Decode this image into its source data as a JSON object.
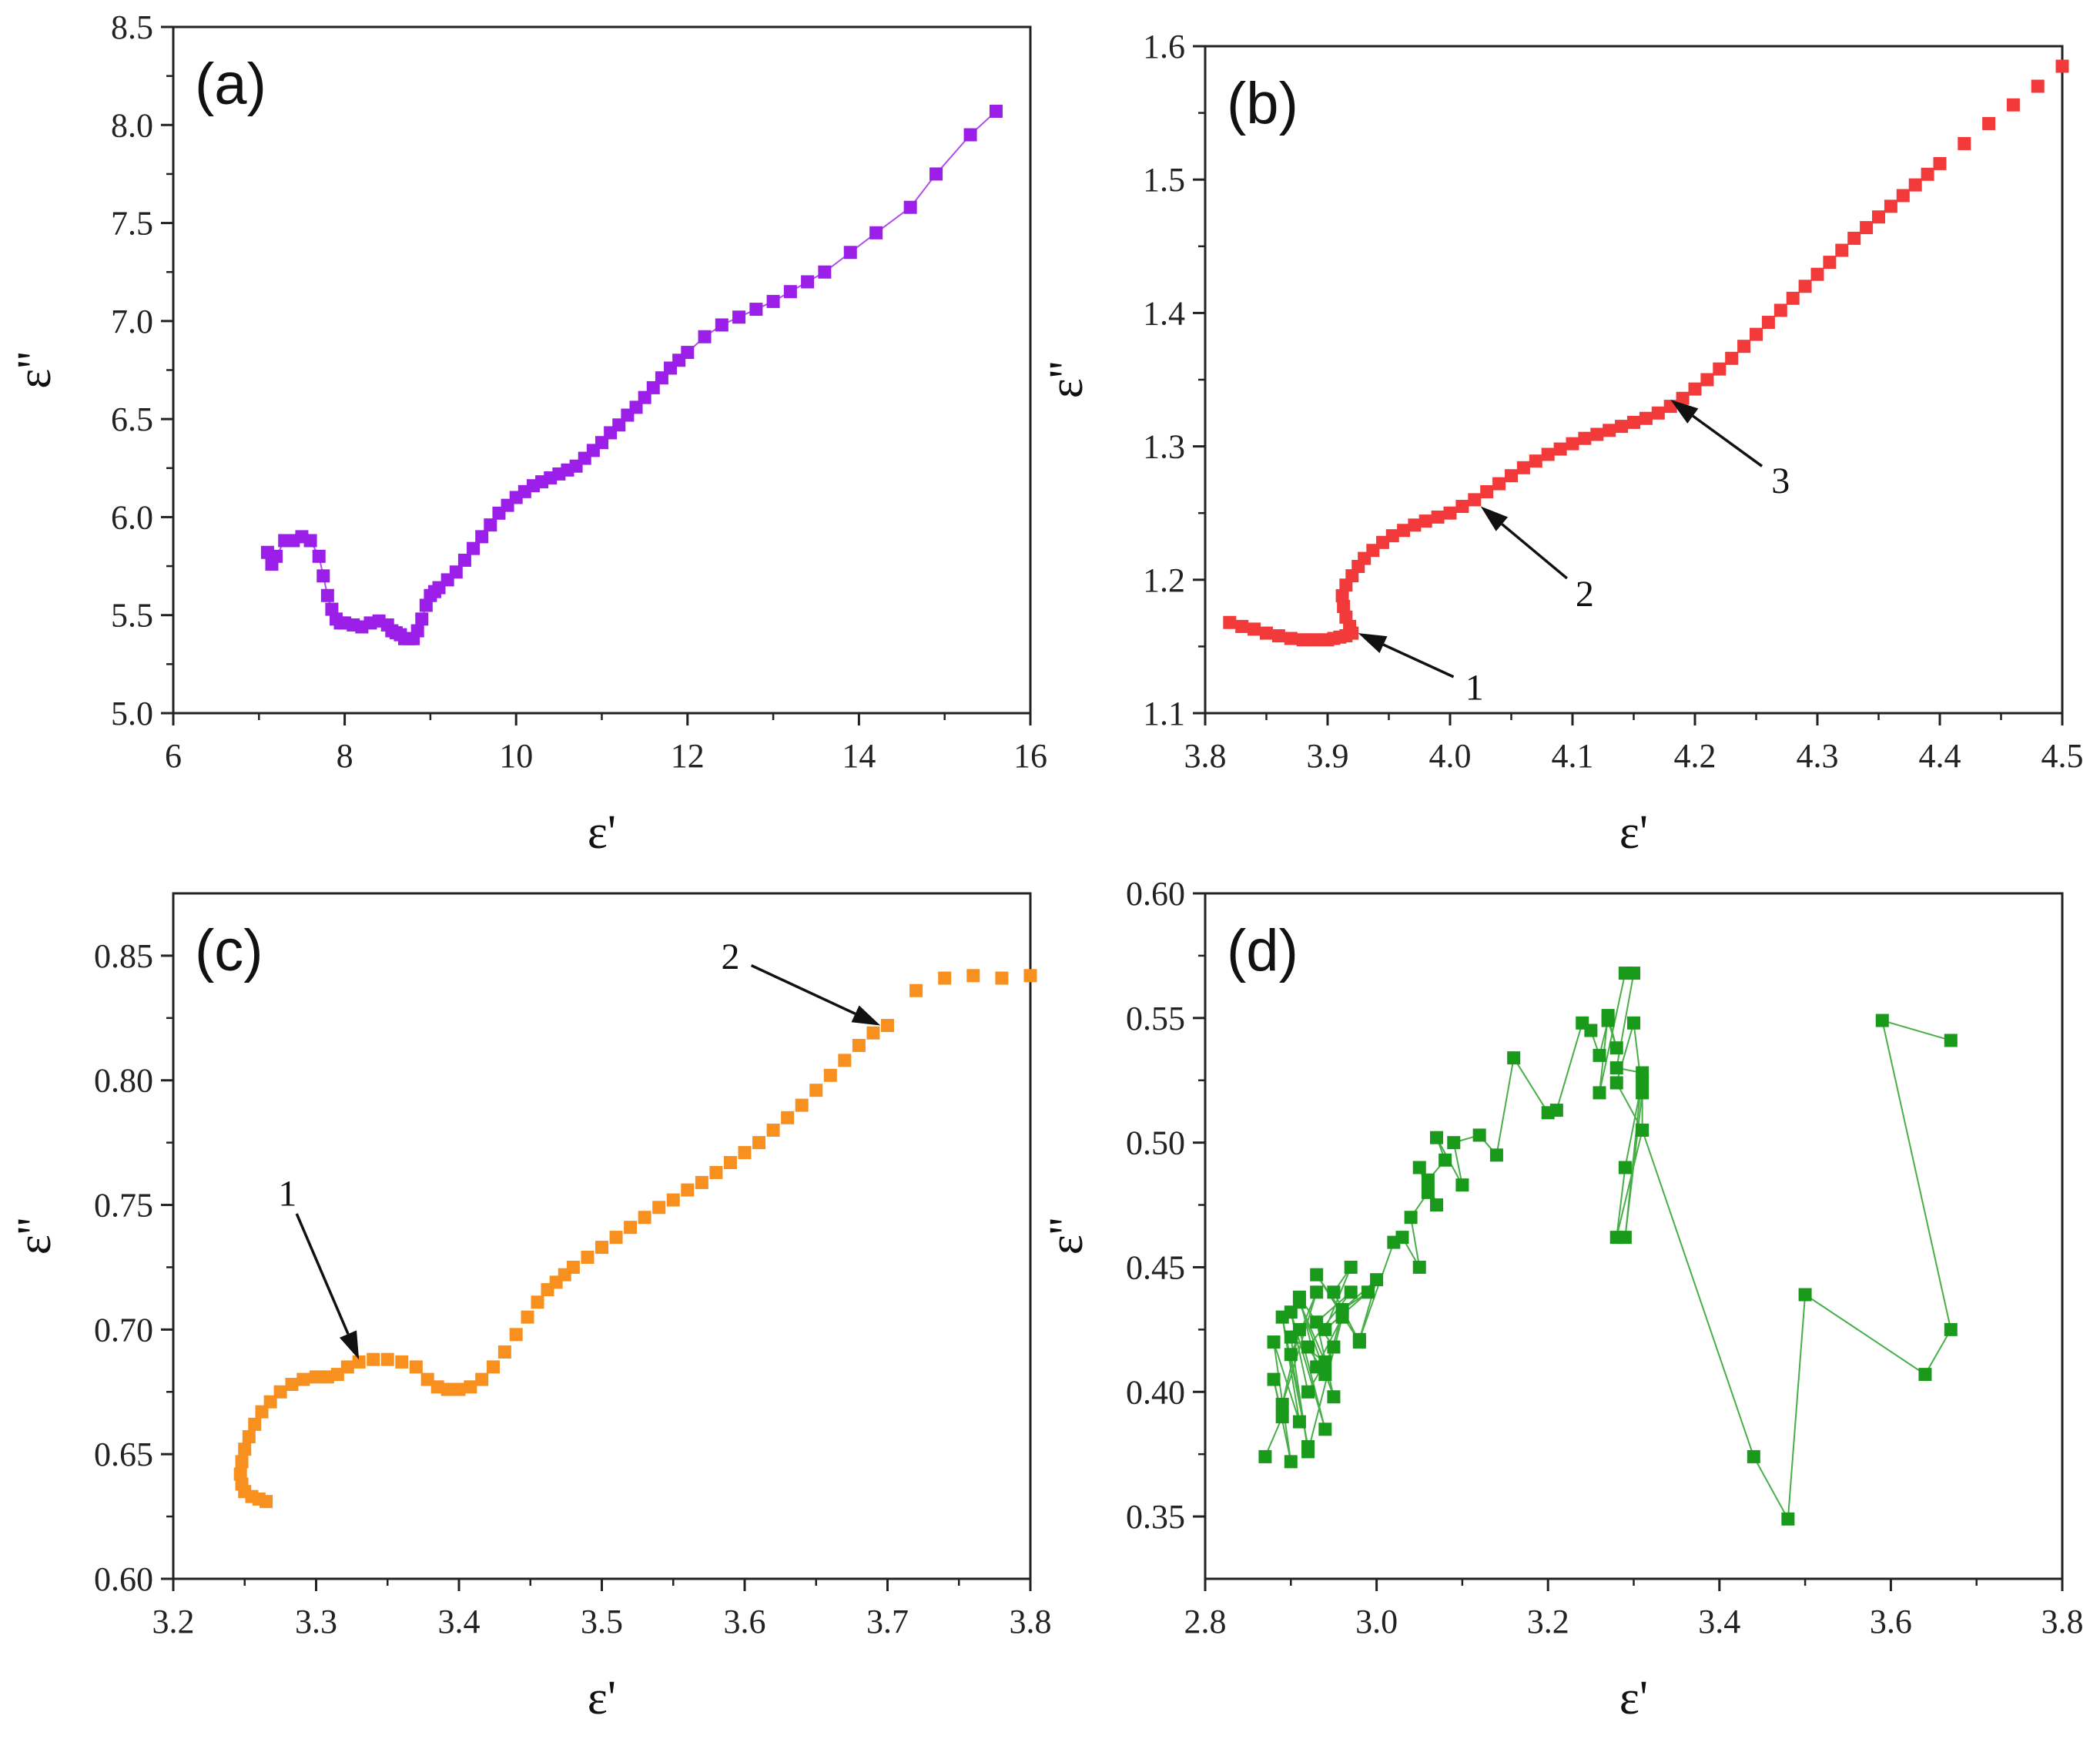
{
  "chart_data": [
    {
      "type": "scatter",
      "panel_label": "(a)",
      "xlabel": "ε'",
      "ylabel": "ε''",
      "xlim": [
        6,
        16
      ],
      "ylim": [
        5.0,
        8.5
      ],
      "xticks": [
        6,
        8,
        10,
        12,
        14,
        16
      ],
      "yticks": [
        5.0,
        5.5,
        6.0,
        6.5,
        7.0,
        7.5,
        8.0,
        8.5
      ],
      "xtick_decimals": 0,
      "ytick_decimals": 1,
      "color": "#9b1fe8",
      "connect": true,
      "annotations": [],
      "series": [
        {
          "x": [
            7.1,
            7.15,
            7.2,
            7.3,
            7.4,
            7.5,
            7.6,
            7.7,
            7.75,
            7.8,
            7.85,
            7.9,
            7.95,
            8.0,
            8.1,
            8.2,
            8.3,
            8.4,
            8.5,
            8.55,
            8.6,
            8.65,
            8.7,
            8.75,
            8.8,
            8.85,
            8.9,
            8.95,
            9.0,
            9.05,
            9.1,
            9.2,
            9.3,
            9.4,
            9.5,
            9.6,
            9.7,
            9.8,
            9.9,
            10.0,
            10.1,
            10.2,
            10.3,
            10.4,
            10.5,
            10.6,
            10.7,
            10.8,
            10.9,
            11.0,
            11.1,
            11.2,
            11.3,
            11.4,
            11.5,
            11.6,
            11.7,
            11.8,
            11.9,
            12.0,
            12.2,
            12.4,
            12.6,
            12.8,
            13.0,
            13.2,
            13.4,
            13.6,
            13.9,
            14.2,
            14.6,
            14.9,
            15.3,
            15.6
          ],
          "y": [
            5.82,
            5.76,
            5.8,
            5.88,
            5.88,
            5.9,
            5.88,
            5.8,
            5.7,
            5.6,
            5.53,
            5.48,
            5.46,
            5.46,
            5.45,
            5.44,
            5.46,
            5.47,
            5.45,
            5.42,
            5.41,
            5.4,
            5.38,
            5.38,
            5.38,
            5.42,
            5.48,
            5.55,
            5.6,
            5.62,
            5.64,
            5.68,
            5.72,
            5.78,
            5.84,
            5.9,
            5.96,
            6.02,
            6.06,
            6.1,
            6.13,
            6.16,
            6.18,
            6.2,
            6.22,
            6.24,
            6.26,
            6.3,
            6.34,
            6.38,
            6.43,
            6.47,
            6.52,
            6.56,
            6.61,
            6.66,
            6.71,
            6.76,
            6.8,
            6.84,
            6.92,
            6.98,
            7.02,
            7.06,
            7.1,
            7.15,
            7.2,
            7.25,
            7.35,
            7.45,
            7.58,
            7.75,
            7.95,
            8.07
          ]
        }
      ]
    },
    {
      "type": "scatter",
      "panel_label": "(b)",
      "xlabel": "ε'",
      "ylabel": "ε''",
      "xlim": [
        3.8,
        4.5
      ],
      "ylim": [
        1.1,
        1.6
      ],
      "xticks": [
        3.8,
        3.9,
        4.0,
        4.1,
        4.2,
        4.3,
        4.4,
        4.5
      ],
      "yticks": [
        1.1,
        1.2,
        1.3,
        1.4,
        1.5,
        1.6
      ],
      "xtick_decimals": 1,
      "ytick_decimals": 1,
      "color": "#f23a3a",
      "connect": false,
      "annotations": [
        {
          "text": "1",
          "point": [
            3.925,
            1.16
          ],
          "label": [
            4.02,
            1.12
          ]
        },
        {
          "text": "2",
          "point": [
            4.025,
            1.255
          ],
          "label": [
            4.11,
            1.19
          ]
        },
        {
          "text": "3",
          "point": [
            4.18,
            1.335
          ],
          "label": [
            4.27,
            1.275
          ]
        }
      ],
      "series": [
        {
          "x": [
            3.82,
            3.83,
            3.84,
            3.85,
            3.86,
            3.87,
            3.88,
            3.89,
            3.9,
            3.905,
            3.91,
            3.915,
            3.92,
            3.918,
            3.915,
            3.913,
            3.912,
            3.915,
            3.92,
            3.925,
            3.93,
            3.937,
            3.945,
            3.953,
            3.962,
            3.971,
            3.98,
            3.99,
            4.0,
            4.01,
            4.02,
            4.03,
            4.04,
            4.05,
            4.06,
            4.07,
            4.08,
            4.09,
            4.1,
            4.11,
            4.12,
            4.13,
            4.14,
            4.15,
            4.16,
            4.17,
            4.18,
            4.19,
            4.2,
            4.21,
            4.22,
            4.23,
            4.24,
            4.25,
            4.26,
            4.27,
            4.28,
            4.29,
            4.3,
            4.31,
            4.32,
            4.33,
            4.34,
            4.35,
            4.36,
            4.37,
            4.38,
            4.39,
            4.4,
            4.42,
            4.44,
            4.46,
            4.48,
            4.5
          ],
          "y": [
            1.168,
            1.165,
            1.163,
            1.16,
            1.158,
            1.156,
            1.155,
            1.155,
            1.155,
            1.156,
            1.157,
            1.158,
            1.16,
            1.165,
            1.172,
            1.18,
            1.188,
            1.196,
            1.203,
            1.21,
            1.216,
            1.222,
            1.228,
            1.233,
            1.237,
            1.241,
            1.244,
            1.247,
            1.25,
            1.255,
            1.26,
            1.266,
            1.272,
            1.278,
            1.284,
            1.289,
            1.294,
            1.298,
            1.302,
            1.306,
            1.309,
            1.312,
            1.315,
            1.318,
            1.321,
            1.325,
            1.33,
            1.336,
            1.343,
            1.35,
            1.358,
            1.366,
            1.375,
            1.384,
            1.393,
            1.402,
            1.411,
            1.42,
            1.429,
            1.438,
            1.447,
            1.456,
            1.464,
            1.472,
            1.48,
            1.488,
            1.496,
            1.504,
            1.512,
            1.527,
            1.542,
            1.556,
            1.57,
            1.585
          ]
        }
      ]
    },
    {
      "type": "scatter",
      "panel_label": "(c)",
      "xlabel": "ε'",
      "ylabel": "ε''",
      "xlim": [
        3.2,
        3.8
      ],
      "ylim": [
        0.6,
        0.875
      ],
      "xticks": [
        3.2,
        3.3,
        3.4,
        3.5,
        3.6,
        3.7,
        3.8
      ],
      "yticks": [
        0.6,
        0.65,
        0.7,
        0.75,
        0.8,
        0.85
      ],
      "xtick_decimals": 1,
      "ytick_decimals": 2,
      "color": "#f7901e",
      "connect": false,
      "annotations": [
        {
          "text": "1",
          "point": [
            3.33,
            0.688
          ],
          "label": [
            3.28,
            0.755
          ]
        },
        {
          "text": "2",
          "point": [
            3.695,
            0.822
          ],
          "label": [
            3.59,
            0.85
          ]
        }
      ],
      "series": [
        {
          "x": [
            3.265,
            3.26,
            3.255,
            3.25,
            3.248,
            3.247,
            3.248,
            3.25,
            3.253,
            3.257,
            3.262,
            3.268,
            3.275,
            3.283,
            3.291,
            3.3,
            3.308,
            3.315,
            3.322,
            3.33,
            3.34,
            3.35,
            3.36,
            3.37,
            3.378,
            3.385,
            3.392,
            3.4,
            3.408,
            3.416,
            3.424,
            3.432,
            3.44,
            3.448,
            3.455,
            3.462,
            3.468,
            3.474,
            3.48,
            3.49,
            3.5,
            3.51,
            3.52,
            3.53,
            3.54,
            3.55,
            3.56,
            3.57,
            3.58,
            3.59,
            3.6,
            3.61,
            3.62,
            3.63,
            3.64,
            3.65,
            3.66,
            3.67,
            3.68,
            3.69,
            3.7,
            3.72,
            3.74,
            3.76,
            3.78,
            3.8
          ],
          "y": [
            0.631,
            0.632,
            0.633,
            0.635,
            0.638,
            0.642,
            0.647,
            0.652,
            0.657,
            0.662,
            0.667,
            0.671,
            0.675,
            0.678,
            0.68,
            0.681,
            0.681,
            0.682,
            0.685,
            0.687,
            0.688,
            0.688,
            0.687,
            0.685,
            0.68,
            0.677,
            0.676,
            0.676,
            0.677,
            0.68,
            0.685,
            0.691,
            0.698,
            0.705,
            0.711,
            0.716,
            0.719,
            0.722,
            0.725,
            0.729,
            0.733,
            0.737,
            0.741,
            0.745,
            0.749,
            0.752,
            0.756,
            0.759,
            0.763,
            0.767,
            0.771,
            0.775,
            0.78,
            0.785,
            0.79,
            0.796,
            0.802,
            0.808,
            0.814,
            0.819,
            0.822,
            0.836,
            0.841,
            0.842,
            0.841,
            0.842
          ]
        }
      ]
    },
    {
      "type": "scatter",
      "panel_label": "(d)",
      "xlabel": "ε'",
      "ylabel": "ε''",
      "xlim": [
        2.8,
        3.8
      ],
      "ylim": [
        0.325,
        0.6
      ],
      "xticks": [
        2.8,
        3.0,
        3.2,
        3.4,
        3.6,
        3.8
      ],
      "yticks": [
        0.35,
        0.4,
        0.45,
        0.5,
        0.55,
        0.6
      ],
      "xtick_decimals": 1,
      "ytick_decimals": 2,
      "color": "#1a9a1a",
      "connect": true,
      "annotations": [],
      "series": [
        {
          "x": [
            2.87,
            2.89,
            2.88,
            2.9,
            2.88,
            2.91,
            2.89,
            2.92,
            2.9,
            2.93,
            2.89,
            2.91,
            2.94,
            2.9,
            2.92,
            2.95,
            2.91,
            2.93,
            2.96,
            2.92,
            2.9,
            2.94,
            2.91,
            2.95,
            2.93,
            2.97,
            2.92,
            2.94,
            2.96,
            2.93,
            2.98,
            2.95,
            2.97,
            2.94,
            2.99,
            2.96,
            3.0,
            2.98,
            3.02,
            3.03,
            3.05,
            3.04,
            3.06,
            3.05,
            3.07,
            3.06,
            3.08,
            3.07,
            3.1,
            3.09,
            3.12,
            3.14,
            3.16,
            3.2,
            3.21,
            3.24,
            3.25,
            3.26,
            3.27,
            3.28,
            3.27,
            3.26,
            3.29,
            3.3,
            3.28,
            3.31,
            3.29,
            3.31,
            3.3,
            3.28,
            3.31,
            3.31,
            3.29,
            3.28,
            3.31,
            3.44,
            3.48,
            3.5,
            3.64,
            3.67,
            3.59,
            3.67
          ],
          "y": [
            0.374,
            0.39,
            0.405,
            0.372,
            0.42,
            0.388,
            0.43,
            0.378,
            0.415,
            0.44,
            0.395,
            0.425,
            0.385,
            0.432,
            0.4,
            0.418,
            0.438,
            0.41,
            0.43,
            0.376,
            0.422,
            0.412,
            0.436,
            0.398,
            0.428,
            0.44,
            0.418,
            0.407,
            0.432,
            0.447,
            0.42,
            0.44,
            0.45,
            0.425,
            0.44,
            0.433,
            0.445,
            0.421,
            0.46,
            0.462,
            0.45,
            0.47,
            0.48,
            0.49,
            0.475,
            0.485,
            0.493,
            0.502,
            0.483,
            0.5,
            0.503,
            0.495,
            0.534,
            0.512,
            0.513,
            0.548,
            0.545,
            0.535,
            0.549,
            0.538,
            0.551,
            0.52,
            0.568,
            0.568,
            0.53,
            0.528,
            0.462,
            0.52,
            0.548,
            0.524,
            0.505,
            0.525,
            0.49,
            0.462,
            0.505,
            0.374,
            0.349,
            0.439,
            0.407,
            0.425,
            0.549,
            0.541
          ]
        }
      ]
    }
  ]
}
